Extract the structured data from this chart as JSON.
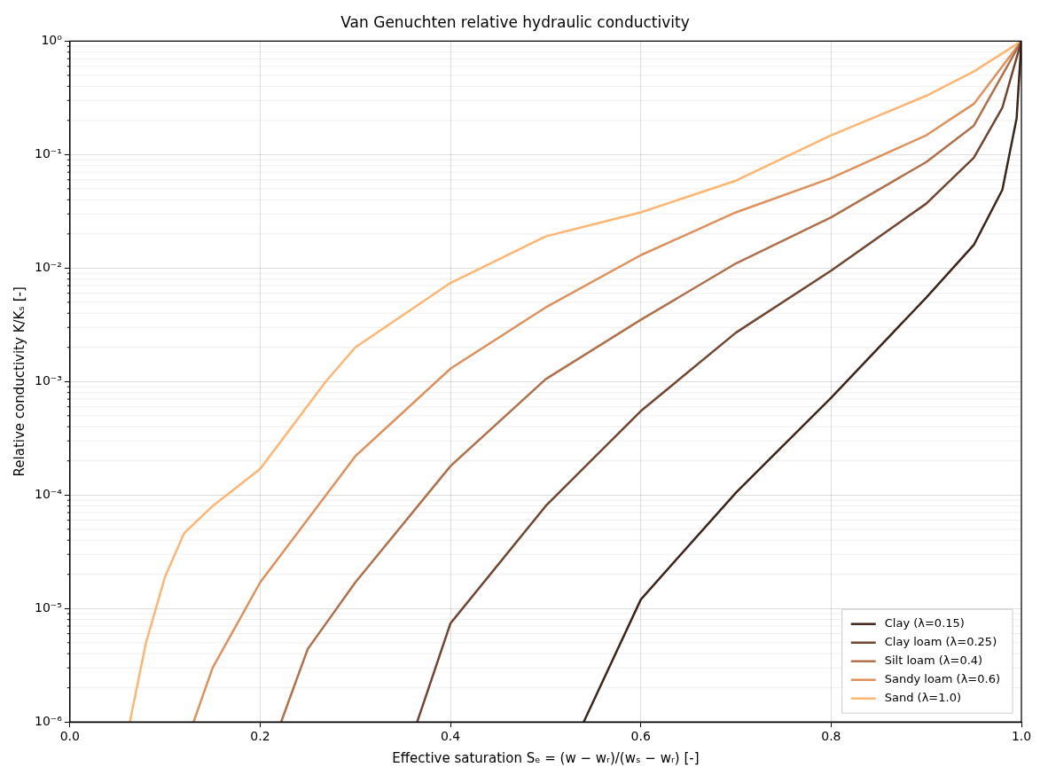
{
  "chart_data": {
    "type": "line",
    "title": "Van Genuchten relative hydraulic conductivity",
    "xlabel": "Effective saturation Sₑ = (w − wᵣ)/(wₛ − wᵣ) [-]",
    "ylabel": "Relative conductivity K/Kₛ [-]",
    "log": "y",
    "grid": true,
    "legend": "bottom right",
    "marker": "none",
    "line_style": "solid",
    "xlim": [
      0,
      1
    ],
    "xticks": [
      {
        "value": 0,
        "label": "0.0"
      },
      0.2,
      0.4,
      0.6,
      0.8,
      {
        "value": 1,
        "label": "1.0"
      }
    ],
    "ylim": [
      1e-06,
      1
    ],
    "yticks": [
      {
        "value": 1e-06,
        "label": "10⁻⁶"
      },
      {
        "value": 1e-05,
        "label": "10⁻⁵"
      },
      {
        "value": 0.0001,
        "label": "10⁻⁴"
      },
      {
        "value": 0.001,
        "label": "10⁻³"
      },
      {
        "value": 0.01,
        "label": "10⁻²"
      },
      {
        "value": 0.1,
        "label": "10⁻¹"
      },
      {
        "value": 1,
        "label": "10⁰"
      }
    ],
    "series": [
      {
        "name": "Clay (λ=0.15)",
        "color": "#3d2519",
        "x": [
          0.54,
          0.6,
          0.7,
          0.8,
          0.9,
          0.95,
          0.98,
          0.995,
          1.0
        ],
        "values": [
          1e-06,
          1.2e-05,
          0.000105,
          0.00072,
          0.0055,
          0.016,
          0.049,
          0.21,
          1
        ]
      },
      {
        "name": "Clay loam (λ=0.25)",
        "color": "#714530",
        "x": [
          0.365,
          0.4,
          0.5,
          0.6,
          0.7,
          0.8,
          0.9,
          0.95,
          0.98,
          1.0
        ],
        "values": [
          1e-06,
          7.4e-06,
          8e-05,
          0.00055,
          0.0027,
          0.0095,
          0.037,
          0.094,
          0.26,
          1
        ]
      },
      {
        "name": "Silt loam (λ=0.4)",
        "color": "#b0704a",
        "x": [
          0.222,
          0.25,
          0.3,
          0.4,
          0.5,
          0.6,
          0.7,
          0.8,
          0.9,
          0.95,
          1.0
        ],
        "values": [
          1e-06,
          4.4e-06,
          1.7e-05,
          0.00018,
          0.00105,
          0.0035,
          0.011,
          0.028,
          0.086,
          0.18,
          1
        ]
      },
      {
        "name": "Sandy loam (λ=0.6)",
        "color": "#e0905a",
        "x": [
          0.13,
          0.15,
          0.2,
          0.3,
          0.4,
          0.5,
          0.6,
          0.7,
          0.8,
          0.9,
          0.95,
          1.0
        ],
        "values": [
          1e-06,
          3e-06,
          1.7e-05,
          0.00022,
          0.0013,
          0.0045,
          0.013,
          0.031,
          0.062,
          0.148,
          0.28,
          1
        ]
      },
      {
        "name": "Sand (λ=1.0)",
        "color": "#ffb570",
        "x": [
          0.063,
          0.08,
          0.1,
          0.12,
          0.15,
          0.2,
          0.269,
          0.3,
          0.4,
          0.5,
          0.6,
          0.7,
          0.8,
          0.9,
          0.95,
          1.0
        ],
        "values": [
          1e-06,
          5e-06,
          1.9e-05,
          4.6e-05,
          8e-05,
          0.00017,
          0.001,
          0.002,
          0.0074,
          0.019,
          0.031,
          0.059,
          0.148,
          0.33,
          0.54,
          1
        ]
      }
    ]
  }
}
